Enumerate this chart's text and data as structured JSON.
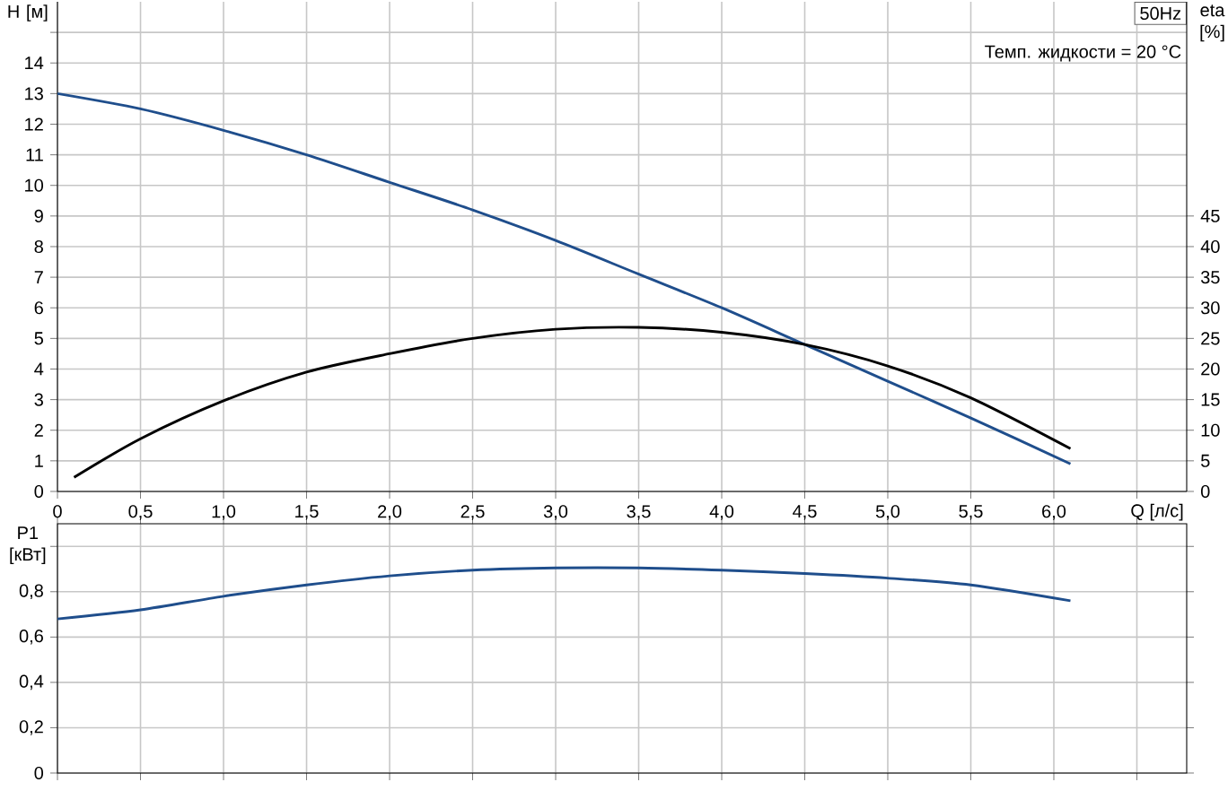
{
  "chart_data": [
    {
      "type": "line",
      "xlabel": "Q [л/с]",
      "ylabel": "H [м]",
      "y2label": "eta [%]",
      "annotations": [
        "50Hz",
        "Темп. жидкости = 20 °C"
      ],
      "xlim": [
        0,
        6.8
      ],
      "ylim": [
        0,
        16
      ],
      "y2lim": [
        0,
        80
      ],
      "xticks": [
        0,
        {
          "value": 0.5,
          "label": "0,5"
        },
        {
          "value": 1.0,
          "label": "1,0"
        },
        {
          "value": 1.5,
          "label": "1,5"
        },
        {
          "value": 2.0,
          "label": "2,0"
        },
        {
          "value": 2.5,
          "label": "2,5"
        },
        {
          "value": 3.0,
          "label": "3,0"
        },
        {
          "value": 3.5,
          "label": "3,5"
        },
        {
          "value": 4.0,
          "label": "4,0"
        },
        {
          "value": 4.5,
          "label": "4,5"
        },
        {
          "value": 5.0,
          "label": "5,0"
        },
        {
          "value": 5.5,
          "label": "5,5"
        },
        {
          "value": 6.0,
          "label": "6,0"
        },
        {
          "value": 6.5,
          "label": null
        }
      ],
      "yticks": [
        0,
        1,
        2,
        3,
        4,
        5,
        6,
        7,
        8,
        9,
        10,
        11,
        12,
        13,
        14,
        {
          "value": 15,
          "label": null
        }
      ],
      "y2ticks": [
        0,
        5,
        10,
        15,
        20,
        25,
        30,
        35,
        40,
        45
      ],
      "grid": true,
      "series": [
        {
          "color": "#1f4e8c",
          "x": [
            0,
            0.5,
            1.0,
            1.5,
            2.0,
            2.5,
            3.0,
            3.5,
            4.0,
            4.5,
            5.0,
            5.5,
            6.1
          ],
          "values": [
            13.0,
            12.5,
            11.8,
            11.0,
            10.1,
            9.2,
            8.2,
            7.1,
            6.0,
            4.8,
            3.6,
            2.4,
            0.9
          ]
        },
        {
          "color": "#000000",
          "axis": "y2",
          "x": [
            0.1,
            0.5,
            1.0,
            1.5,
            2.0,
            2.5,
            3.0,
            3.5,
            4.0,
            4.5,
            5.0,
            5.5,
            6.1
          ],
          "values": [
            2.3,
            8.6,
            14.8,
            19.5,
            22.5,
            25,
            26.5,
            26.8,
            26,
            24,
            20.5,
            15.3,
            7
          ]
        }
      ]
    },
    {
      "type": "line",
      "ylabel": "P1 [кВт]",
      "tick_labels": "y",
      "xlim": [
        0,
        6.8
      ],
      "ylim": [
        0,
        1.1
      ],
      "xticks": [
        0,
        0.5,
        1.0,
        1.5,
        2.0,
        2.5,
        3.0,
        3.5,
        4.0,
        4.5,
        5.0,
        5.5,
        6.0,
        6.5
      ],
      "yticks": [
        0,
        {
          "value": 0.2,
          "label": "0,2"
        },
        {
          "value": 0.4,
          "label": "0,4"
        },
        {
          "value": 0.6,
          "label": "0,6"
        },
        {
          "value": 0.8,
          "label": "0,8"
        },
        {
          "value": 1.0,
          "label": null
        }
      ],
      "grid": true,
      "series": [
        {
          "color": "#1f4e8c",
          "x": [
            0,
            0.5,
            1.0,
            1.5,
            2.0,
            2.5,
            3.0,
            3.5,
            4.0,
            4.5,
            5.0,
            5.5,
            6.1
          ],
          "values": [
            0.68,
            0.72,
            0.78,
            0.83,
            0.87,
            0.895,
            0.905,
            0.905,
            0.895,
            0.88,
            0.86,
            0.83,
            0.76
          ]
        }
      ]
    }
  ]
}
